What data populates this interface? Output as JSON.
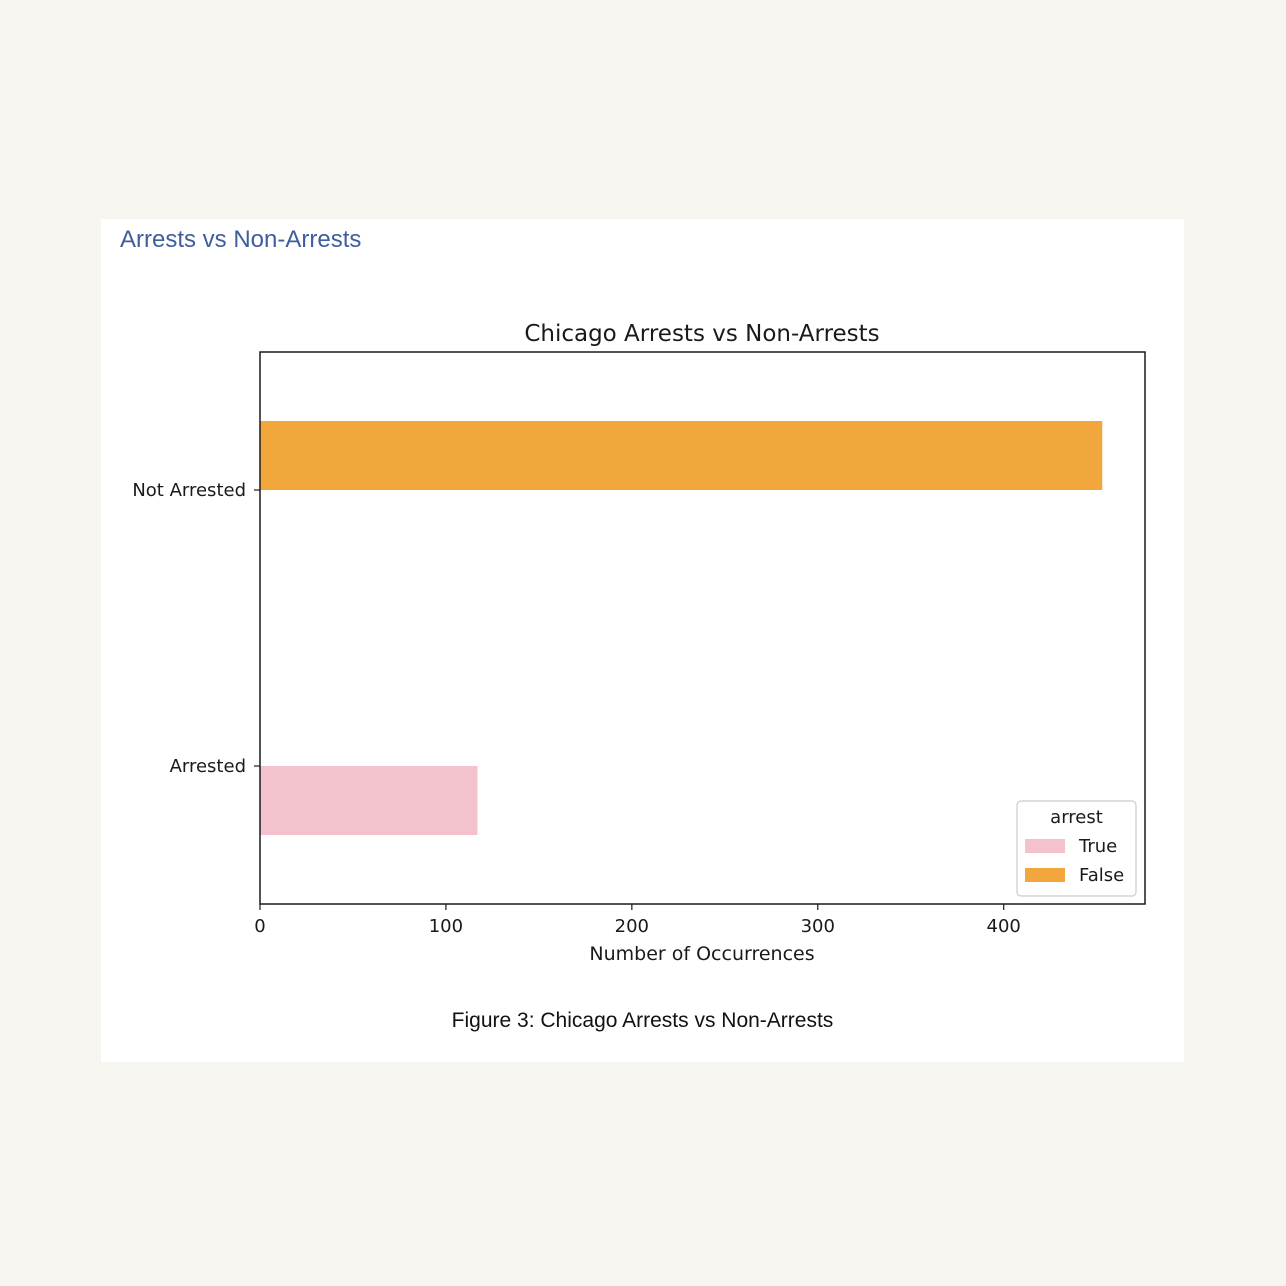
{
  "section": {
    "heading": "Arrests vs Non-Arrests"
  },
  "figure": {
    "caption": "Figure 3: Chicago Arrests vs Non-Arrests"
  },
  "chart_data": {
    "type": "bar",
    "orientation": "horizontal",
    "title": "Chicago Arrests vs Non-Arrests",
    "xlabel": "Number of Occurrences",
    "ylabel": "",
    "categories": [
      "Not Arrested",
      "Arrested"
    ],
    "series": [
      {
        "name": "True",
        "color": "#f4c2cc",
        "values": [
          0,
          117
        ]
      },
      {
        "name": "False",
        "color": "#f2a73d",
        "values": [
          453,
          0
        ]
      }
    ],
    "xlim": [
      0,
      476
    ],
    "xticks": [
      0,
      100,
      200,
      300,
      400
    ],
    "legend": {
      "title": "arrest",
      "position": "lower-right"
    },
    "grid": false
  }
}
